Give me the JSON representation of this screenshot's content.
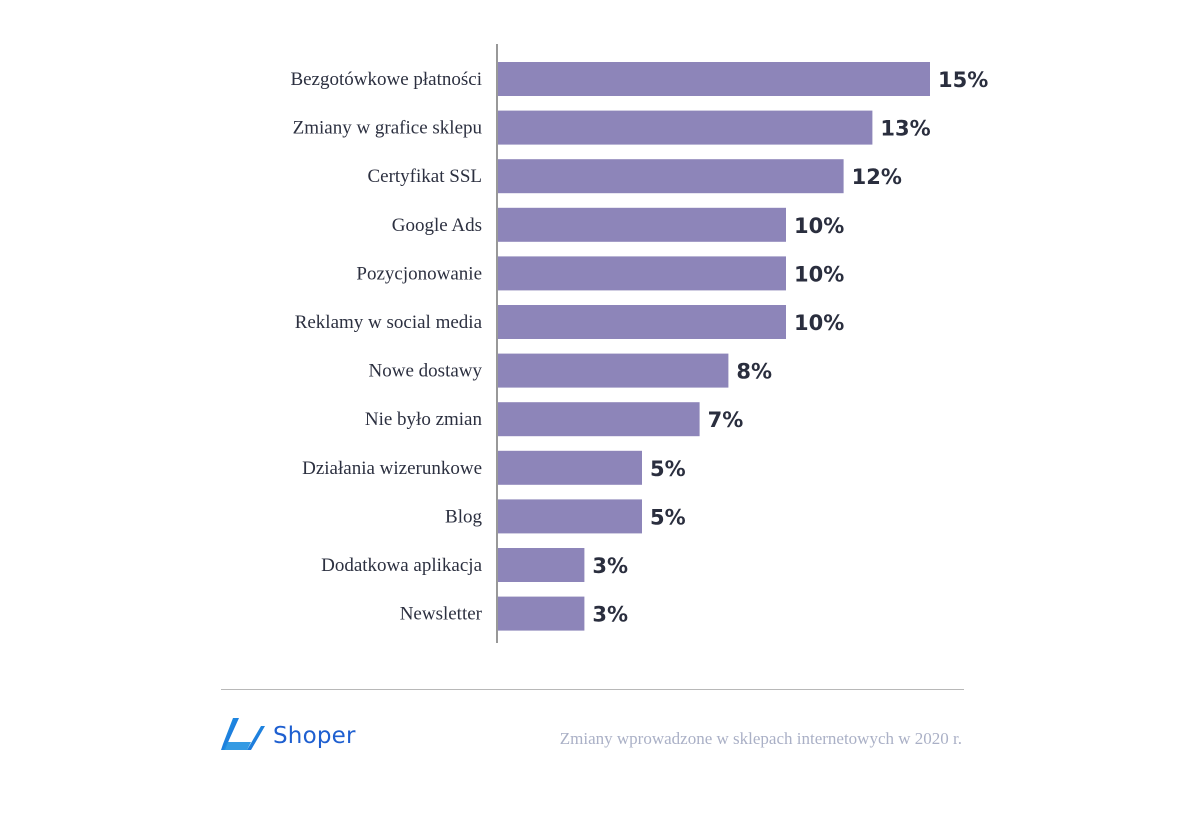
{
  "chart_data": {
    "type": "bar",
    "orientation": "horizontal",
    "categories": [
      "Bezgotówkowe płatności",
      "Zmiany w grafice sklepu",
      "Certyfikat SSL",
      "Google Ads",
      "Pozycjonowanie",
      "Reklamy w social media",
      "Nowe dostawy",
      "Nie było zmian",
      "Działania wizerunkowe",
      "Blog",
      "Dodatkowa aplikacja",
      "Newsletter"
    ],
    "values": [
      15,
      13,
      12,
      10,
      10,
      10,
      8,
      7,
      5,
      5,
      3,
      3
    ],
    "value_labels": [
      "15%",
      "13%",
      "12%",
      "10%",
      "10%",
      "10%",
      "8%",
      "7%",
      "5%",
      "5%",
      "3%",
      "3%"
    ],
    "unit": "%",
    "xlim": [
      0,
      15
    ],
    "bar_color": "#8d85b9",
    "grid": false,
    "legend": "none"
  },
  "footer": {
    "brand": "Shoper",
    "brand_color": "#1e5fd0",
    "logo_icon": "shoper-logo-icon",
    "caption": "Zmiany wprowadzone w sklepach internetowych w 2020 r."
  }
}
